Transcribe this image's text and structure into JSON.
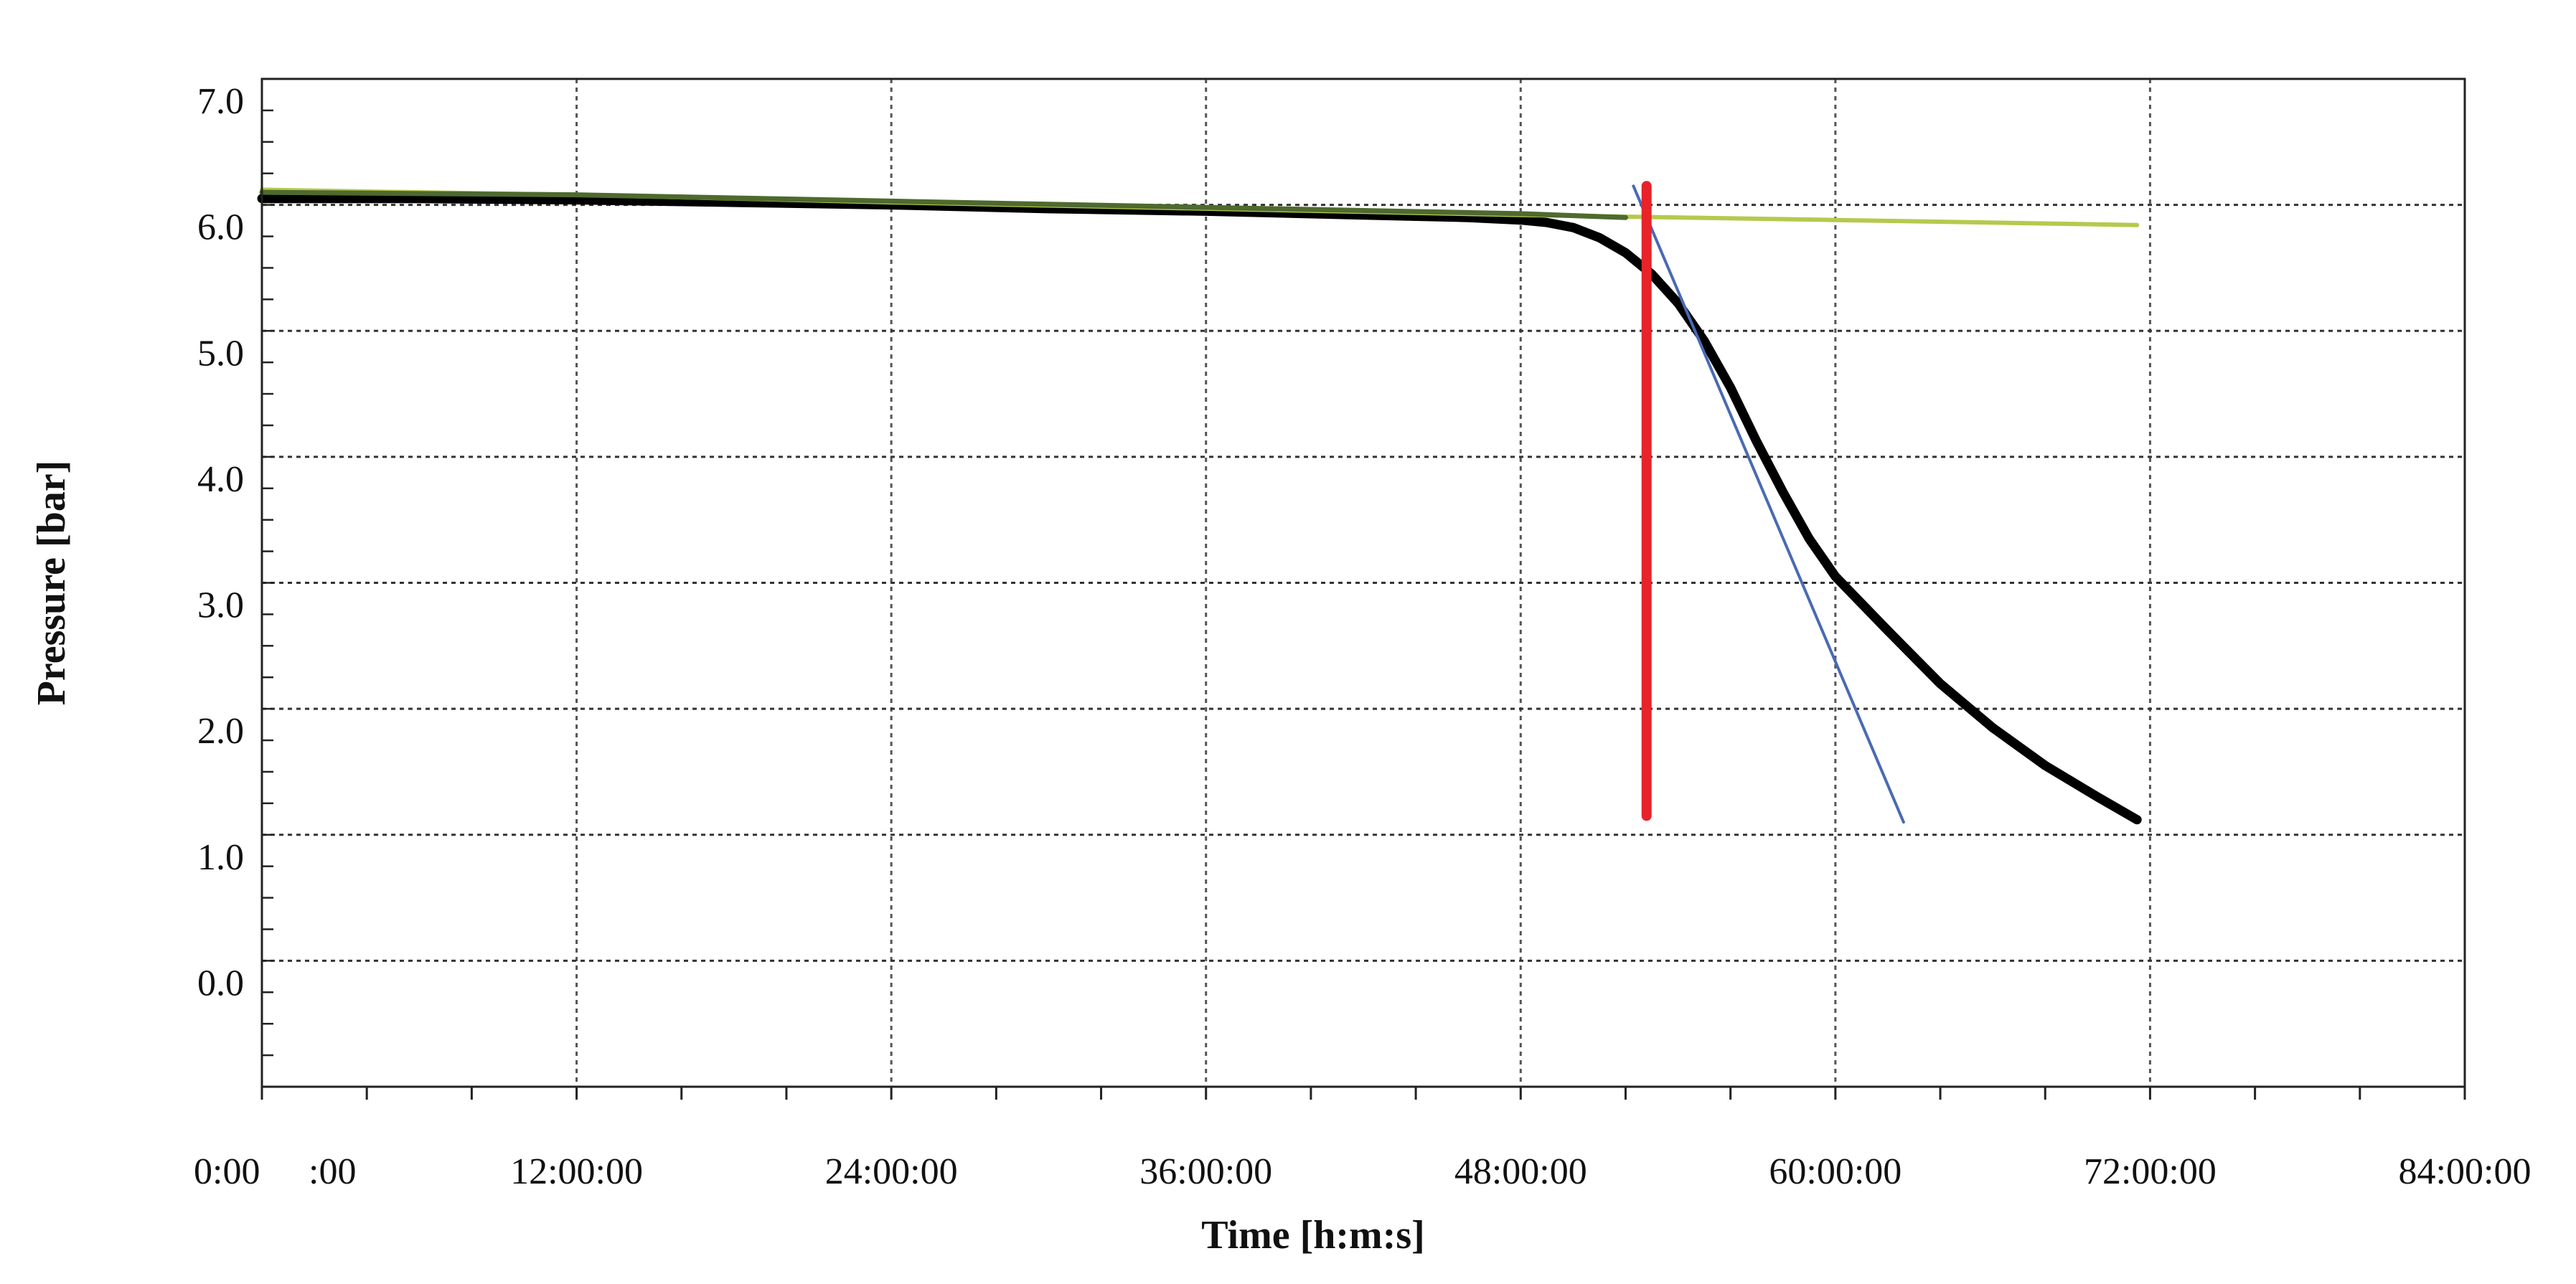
{
  "chart_data": {
    "type": "line",
    "title": "",
    "xlabel": "Time [h:m:s]",
    "ylabel": "Pressure [bar]",
    "x_unit": "hours",
    "xlim": [
      0,
      84
    ],
    "ylim": [
      -1,
      7
    ],
    "grid": true,
    "legend": "none",
    "x_ticks": [
      {
        "value": 0,
        "label": "0:00"
      },
      {
        "value": 4,
        "label": ":00"
      },
      {
        "value": 12,
        "label": "12:00:00"
      },
      {
        "value": 24,
        "label": "24:00:00"
      },
      {
        "value": 36,
        "label": "36:00:00"
      },
      {
        "value": 48,
        "label": "48:00:00"
      },
      {
        "value": 60,
        "label": "60:00:00"
      },
      {
        "value": 72,
        "label": "72:00:00"
      },
      {
        "value": 84,
        "label": "84:00:00"
      }
    ],
    "y_ticks": [
      {
        "value": 0,
        "label": "0.0"
      },
      {
        "value": 1,
        "label": "1.0"
      },
      {
        "value": 2,
        "label": "2.0"
      },
      {
        "value": 3,
        "label": "3.0"
      },
      {
        "value": 4,
        "label": "4.0"
      },
      {
        "value": 5,
        "label": "5.0"
      },
      {
        "value": 6,
        "label": "6.0"
      },
      {
        "value": 7,
        "label": "7.0"
      }
    ],
    "y_gridlines": [
      0.0,
      1.0,
      2.0,
      3.0,
      4.0,
      5.0,
      6.0
    ],
    "series": [
      {
        "key": "pressure",
        "color": "#000000",
        "x": [
          0,
          6,
          12,
          18,
          24,
          30,
          36,
          42,
          46,
          48,
          49,
          50,
          51,
          52,
          53,
          54,
          55,
          56,
          57,
          58,
          59,
          60,
          62,
          64,
          66,
          68,
          70,
          71.5
        ],
        "y": [
          6.05,
          6.05,
          6.04,
          6.02,
          6.0,
          5.97,
          5.95,
          5.92,
          5.9,
          5.88,
          5.86,
          5.82,
          5.74,
          5.62,
          5.45,
          5.22,
          4.92,
          4.55,
          4.12,
          3.72,
          3.35,
          3.05,
          2.62,
          2.2,
          1.85,
          1.55,
          1.3,
          1.12
        ]
      },
      {
        "key": "baseline-fit",
        "color": "#b5c94e",
        "x": [
          0,
          12,
          24,
          36,
          48,
          60,
          71.5
        ],
        "y": [
          6.12,
          6.08,
          6.02,
          5.97,
          5.92,
          5.88,
          5.84
        ]
      },
      {
        "key": "early-fit",
        "color": "#4e6a2e",
        "x": [
          0,
          12,
          24,
          36,
          48,
          52
        ],
        "y": [
          6.1,
          6.08,
          6.03,
          5.98,
          5.93,
          5.9
        ]
      },
      {
        "key": "tangent",
        "color": "#4a6ab3",
        "x": [
          52.3,
          62.6
        ],
        "y": [
          6.15,
          1.1
        ]
      },
      {
        "key": "onset-marker",
        "color": "#e8232a",
        "x": [
          52.8,
          52.8
        ],
        "y": [
          6.15,
          1.15
        ]
      }
    ]
  }
}
